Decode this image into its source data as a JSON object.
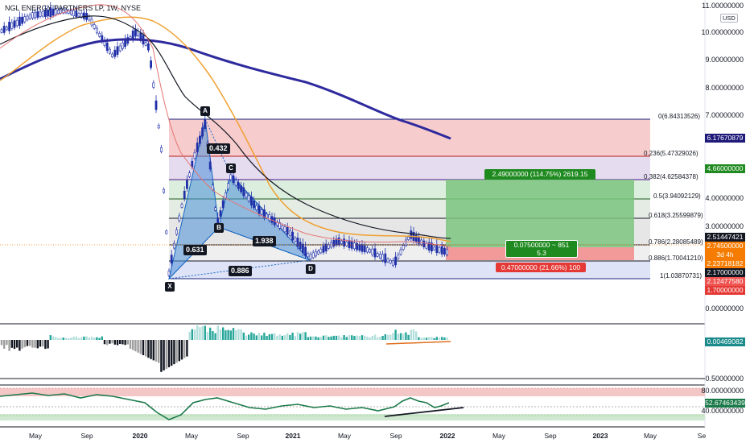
{
  "header": {
    "title": "NGL ENERGY PARTNERS LP, 1W, NYSE",
    "currency": "USD"
  },
  "price_axis": [
    "11.00000000",
    "10.00000000",
    "9.00000000",
    "8.00000000",
    "7.00000000",
    "5.00000000",
    "4.00000000",
    "3.00000000",
    "0.00000000"
  ],
  "price_tags": [
    {
      "text": "6.17670879",
      "color": "#1f1a7a"
    },
    {
      "text": "4.66000000",
      "color": "#1f8a1f"
    },
    {
      "text": "2.51447421",
      "color": "#131722"
    },
    {
      "text": "2.74500000",
      "color": "#f57c00"
    },
    {
      "text": "3d 4h",
      "color": "#f57c00"
    },
    {
      "text": "2.23718182",
      "color": "#f57c00"
    },
    {
      "text": "2.17000000",
      "color": "#131722"
    },
    {
      "text": "2.12477580",
      "color": "#ef5350"
    },
    {
      "text": "1.70000000",
      "color": "#e53935"
    }
  ],
  "fib_levels": [
    {
      "label": "0(6.84313526)",
      "color": "#1a237e"
    },
    {
      "label": "0.236(5.47329026)",
      "color": "#b71c1c"
    },
    {
      "label": "0.382(4.62584378)",
      "color": "#4a148c"
    },
    {
      "label": "0.5(3.94092129)",
      "color": "#1b5e20"
    },
    {
      "label": "0.618(3.25599879)",
      "color": "#131722"
    },
    {
      "label": "0.786(2.28085489)",
      "color": "#131722"
    },
    {
      "label": "0.886(1.70041210)",
      "color": "#131722"
    },
    {
      "label": "1(1.03870731)",
      "color": "#1a237e"
    }
  ],
  "pattern": {
    "points": [
      "X",
      "A",
      "B",
      "C",
      "D"
    ],
    "ratios": [
      "0.432",
      "0.631",
      "1.938",
      "0.886"
    ]
  },
  "position": {
    "target": "2.49000000 (114.75%) 2619.15",
    "center_line1": "0.07500000 ~ 851",
    "center_line2": "5.3",
    "stop": "0.47000000 (21.66%) 100"
  },
  "macd": {
    "value": "0.00469082",
    "lower_tick": "-0.50000000"
  },
  "rsi": {
    "value": "52.67463439",
    "levels": [
      "80.00000000",
      "40.00000000"
    ]
  },
  "time_axis": [
    "May",
    "Sep",
    "2020",
    "May",
    "Sep",
    "2021",
    "May",
    "Sep",
    "2022",
    "May",
    "Sep",
    "2023",
    "May",
    "Se"
  ],
  "colors": {
    "ma_blue": "#2e2a9e",
    "ma_orange": "#f0a030",
    "ma_black": "#131722",
    "ma_red": "#e57373",
    "candle": "#1f2fa8",
    "target_green": "#4caf50",
    "stop_red": "#ef5350",
    "pattern_blue": "#4a90d9"
  }
}
